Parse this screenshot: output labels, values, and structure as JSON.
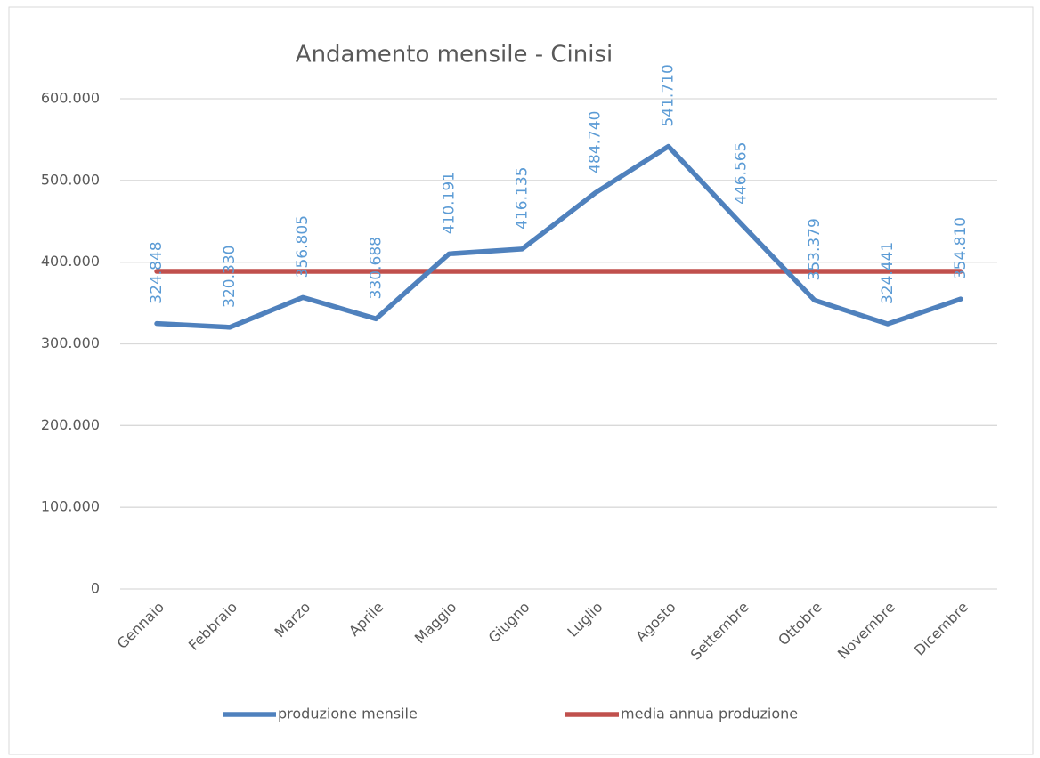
{
  "chart_data": {
    "type": "line",
    "title": "Andamento mensile - Cinisi",
    "categories": [
      "Gennaio",
      "Febbraio",
      "Marzo",
      "Aprile",
      "Maggio",
      "Giugno",
      "Luglio",
      "Agosto",
      "Settembre",
      "Ottobre",
      "Novembre",
      "Dicembre"
    ],
    "series": [
      {
        "name": "produzione mensile",
        "color": "#4f81bd",
        "values": [
          324848,
          320330,
          356805,
          330688,
          410191,
          416135,
          484740,
          541710,
          446565,
          353379,
          324441,
          354810
        ],
        "value_labels": [
          "324.848",
          "320.330",
          "356.805",
          "330.688",
          "410.191",
          "416.135",
          "484.740",
          "541.710",
          "446.565",
          "353.379",
          "324.441",
          "354.810"
        ],
        "label_color": "#5b9bd5"
      },
      {
        "name": "media annua produzione",
        "color": "#c0504d",
        "values": [
          388720,
          388720,
          388720,
          388720,
          388720,
          388720,
          388720,
          388720,
          388720,
          388720,
          388720,
          388720
        ]
      }
    ],
    "ylim": [
      0,
      600000
    ],
    "yticks": [
      0,
      {
        "value": 100000,
        "label": "100.000"
      },
      {
        "value": 200000,
        "label": "200.000"
      },
      {
        "value": 300000,
        "label": "300.000"
      },
      {
        "value": 400000,
        "label": "400.000"
      },
      {
        "value": 500000,
        "label": "500.000"
      },
      {
        "value": 600000,
        "label": "600.000"
      }
    ],
    "grid": true,
    "legend": "bottom"
  }
}
